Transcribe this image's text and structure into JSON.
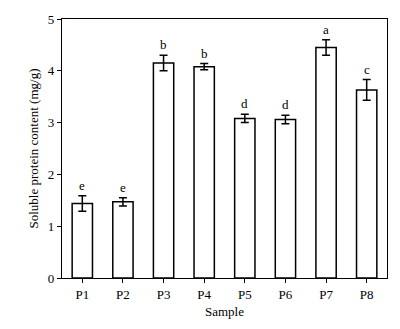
{
  "chart_data": {
    "type": "bar",
    "categories": [
      "P1",
      "P2",
      "P3",
      "P4",
      "P5",
      "P6",
      "P7",
      "P8"
    ],
    "values": [
      1.44,
      1.47,
      4.15,
      4.08,
      3.08,
      3.06,
      4.45,
      3.63
    ],
    "errors": [
      0.15,
      0.08,
      0.15,
      0.06,
      0.08,
      0.08,
      0.15,
      0.2
    ],
    "annotations": [
      "e",
      "e",
      "b",
      "b",
      "d",
      "d",
      "a",
      "c"
    ],
    "color": "#ffffff",
    "x_label": "Sample",
    "y_label": "Soluble protein content (mg/g)",
    "ylim": [
      0,
      5
    ],
    "yticks": [
      0,
      1,
      2,
      3,
      4,
      5
    ],
    "grid": false
  }
}
